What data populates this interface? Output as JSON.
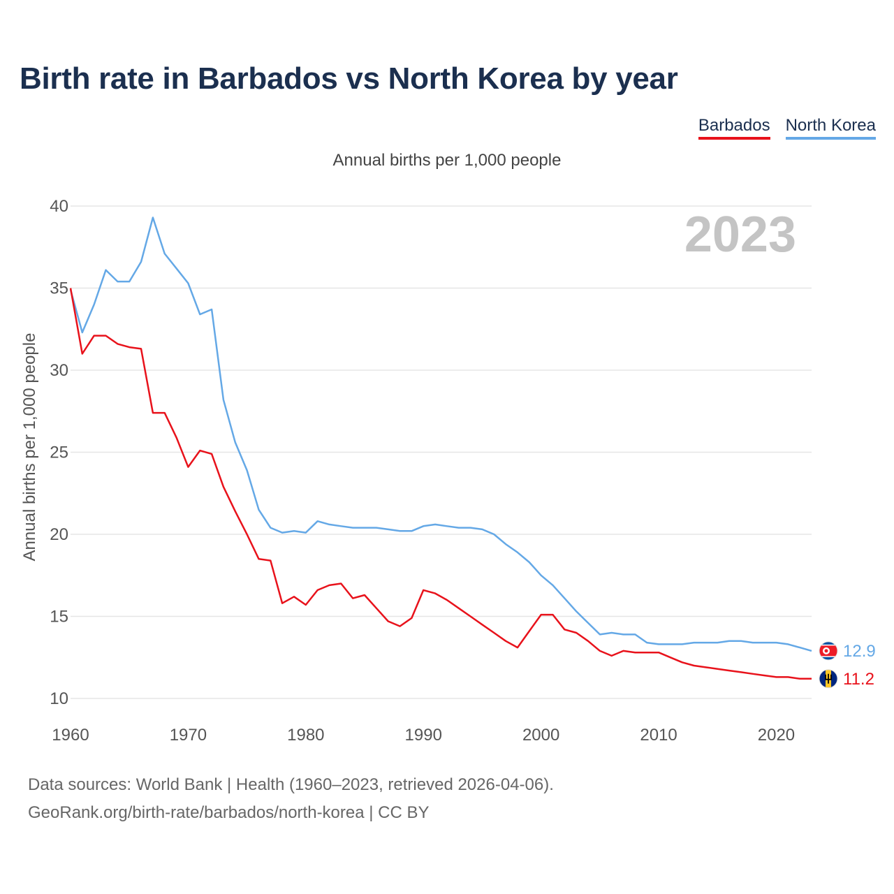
{
  "title": "Birth rate in Barbados vs North Korea by year",
  "legend": {
    "barbados": "Barbados",
    "north_korea": "North Korea"
  },
  "subtitle": "Annual births per 1,000 people",
  "year_label": "2023",
  "footer": {
    "line1": "Data sources: World Bank | Health (1960–2023, retrieved 2026-04-06).",
    "line2": "GeoRank.org/birth-rate/barbados/north-korea | CC BY"
  },
  "colors": {
    "barbados": "#e8121b",
    "north_korea": "#64a8e6",
    "title": "#1b2f4f"
  },
  "chart_data": {
    "type": "line",
    "title": "Birth rate in Barbados vs North Korea by year",
    "xlabel": "",
    "ylabel": "Annual births per 1,000 people",
    "xlim": [
      1960,
      2023
    ],
    "ylim": [
      10,
      40
    ],
    "yticks": [
      10,
      15,
      20,
      25,
      30,
      35,
      40
    ],
    "xticks": [
      1960,
      1970,
      1980,
      1990,
      2000,
      2010,
      2020
    ],
    "grid": true,
    "legend_position": "top-right",
    "x": [
      1960,
      1961,
      1962,
      1963,
      1964,
      1965,
      1966,
      1967,
      1968,
      1969,
      1970,
      1971,
      1972,
      1973,
      1974,
      1975,
      1976,
      1977,
      1978,
      1979,
      1980,
      1981,
      1982,
      1983,
      1984,
      1985,
      1986,
      1987,
      1988,
      1989,
      1990,
      1991,
      1992,
      1993,
      1994,
      1995,
      1996,
      1997,
      1998,
      1999,
      2000,
      2001,
      2002,
      2003,
      2004,
      2005,
      2006,
      2007,
      2008,
      2009,
      2010,
      2011,
      2012,
      2013,
      2014,
      2015,
      2016,
      2017,
      2018,
      2019,
      2020,
      2021,
      2022,
      2023
    ],
    "series": [
      {
        "name": "North Korea",
        "color": "#64a8e6",
        "last_label": "12.9",
        "values": [
          34.9,
          32.3,
          34.0,
          36.1,
          35.4,
          35.4,
          36.6,
          39.3,
          37.1,
          36.2,
          35.3,
          33.4,
          33.7,
          28.2,
          25.6,
          23.9,
          21.5,
          20.4,
          20.1,
          20.2,
          20.1,
          20.8,
          20.6,
          20.5,
          20.4,
          20.4,
          20.4,
          20.3,
          20.2,
          20.2,
          20.5,
          20.6,
          20.5,
          20.4,
          20.4,
          20.3,
          20.0,
          19.4,
          18.9,
          18.3,
          17.5,
          16.9,
          16.1,
          15.3,
          14.6,
          13.9,
          14.0,
          13.9,
          13.9,
          13.4,
          13.3,
          13.3,
          13.3,
          13.4,
          13.4,
          13.4,
          13.5,
          13.5,
          13.4,
          13.4,
          13.4,
          13.3,
          13.1,
          12.9
        ]
      },
      {
        "name": "Barbados",
        "color": "#e8121b",
        "last_label": "11.2",
        "values": [
          35.0,
          31.0,
          32.1,
          32.1,
          31.6,
          31.4,
          31.3,
          27.4,
          27.4,
          25.9,
          24.1,
          25.1,
          24.9,
          22.9,
          21.4,
          20.0,
          18.5,
          18.4,
          15.8,
          16.2,
          15.7,
          16.6,
          16.9,
          17.0,
          16.1,
          16.3,
          15.5,
          14.7,
          14.4,
          14.9,
          16.6,
          16.4,
          16.0,
          15.5,
          15.0,
          14.5,
          14.0,
          13.5,
          13.1,
          14.1,
          15.1,
          15.1,
          14.2,
          14.0,
          13.5,
          12.9,
          12.6,
          12.9,
          12.8,
          12.8,
          12.8,
          12.5,
          12.2,
          12.0,
          11.9,
          11.8,
          11.7,
          11.6,
          11.5,
          11.4,
          11.3,
          11.3,
          11.2,
          11.2
        ]
      }
    ]
  }
}
